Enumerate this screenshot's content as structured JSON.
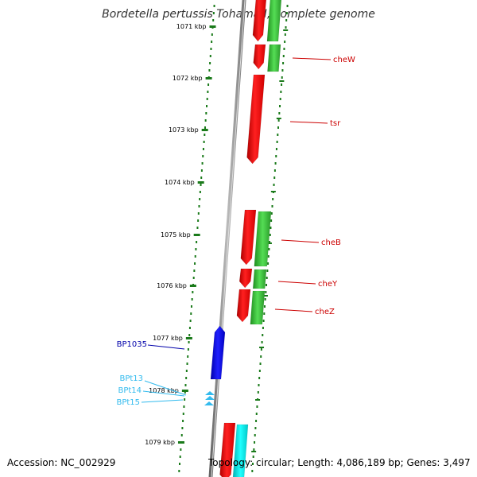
{
  "title": "Bordetella pertussis Tohama I, complete genome",
  "footer": {
    "accession": "Accession: NC_002929",
    "topology": "Topology: circular; Length: 4,086,189 bp; Genes: 3,497"
  },
  "colors": {
    "backbone": "#8c8c8c",
    "tick": "#1a7a1a",
    "gene_forward": "#ff1a1a",
    "gene_cds": "#33cc33",
    "gene_cyan": "#00e5e5",
    "misc_feature": "#0000dd",
    "rna": "#33bbee",
    "label_gene": "#cc0000",
    "label_misc": "#0000aa",
    "label_rna": "#33bbee"
  },
  "scale_labels": [
    "1071 kbp",
    "1072 kbp",
    "1073 kbp",
    "1074 kbp",
    "1075 kbp",
    "1076 kbp",
    "1077 kbp",
    "1078 kbp",
    "1079 kbp"
  ],
  "gene_labels": [
    "cheW",
    "tsr",
    "cheB",
    "cheY",
    "cheZ"
  ],
  "misc_labels": [
    "BP1035"
  ],
  "rna_labels": [
    "BPt13",
    "BPt14",
    "BPt15"
  ]
}
